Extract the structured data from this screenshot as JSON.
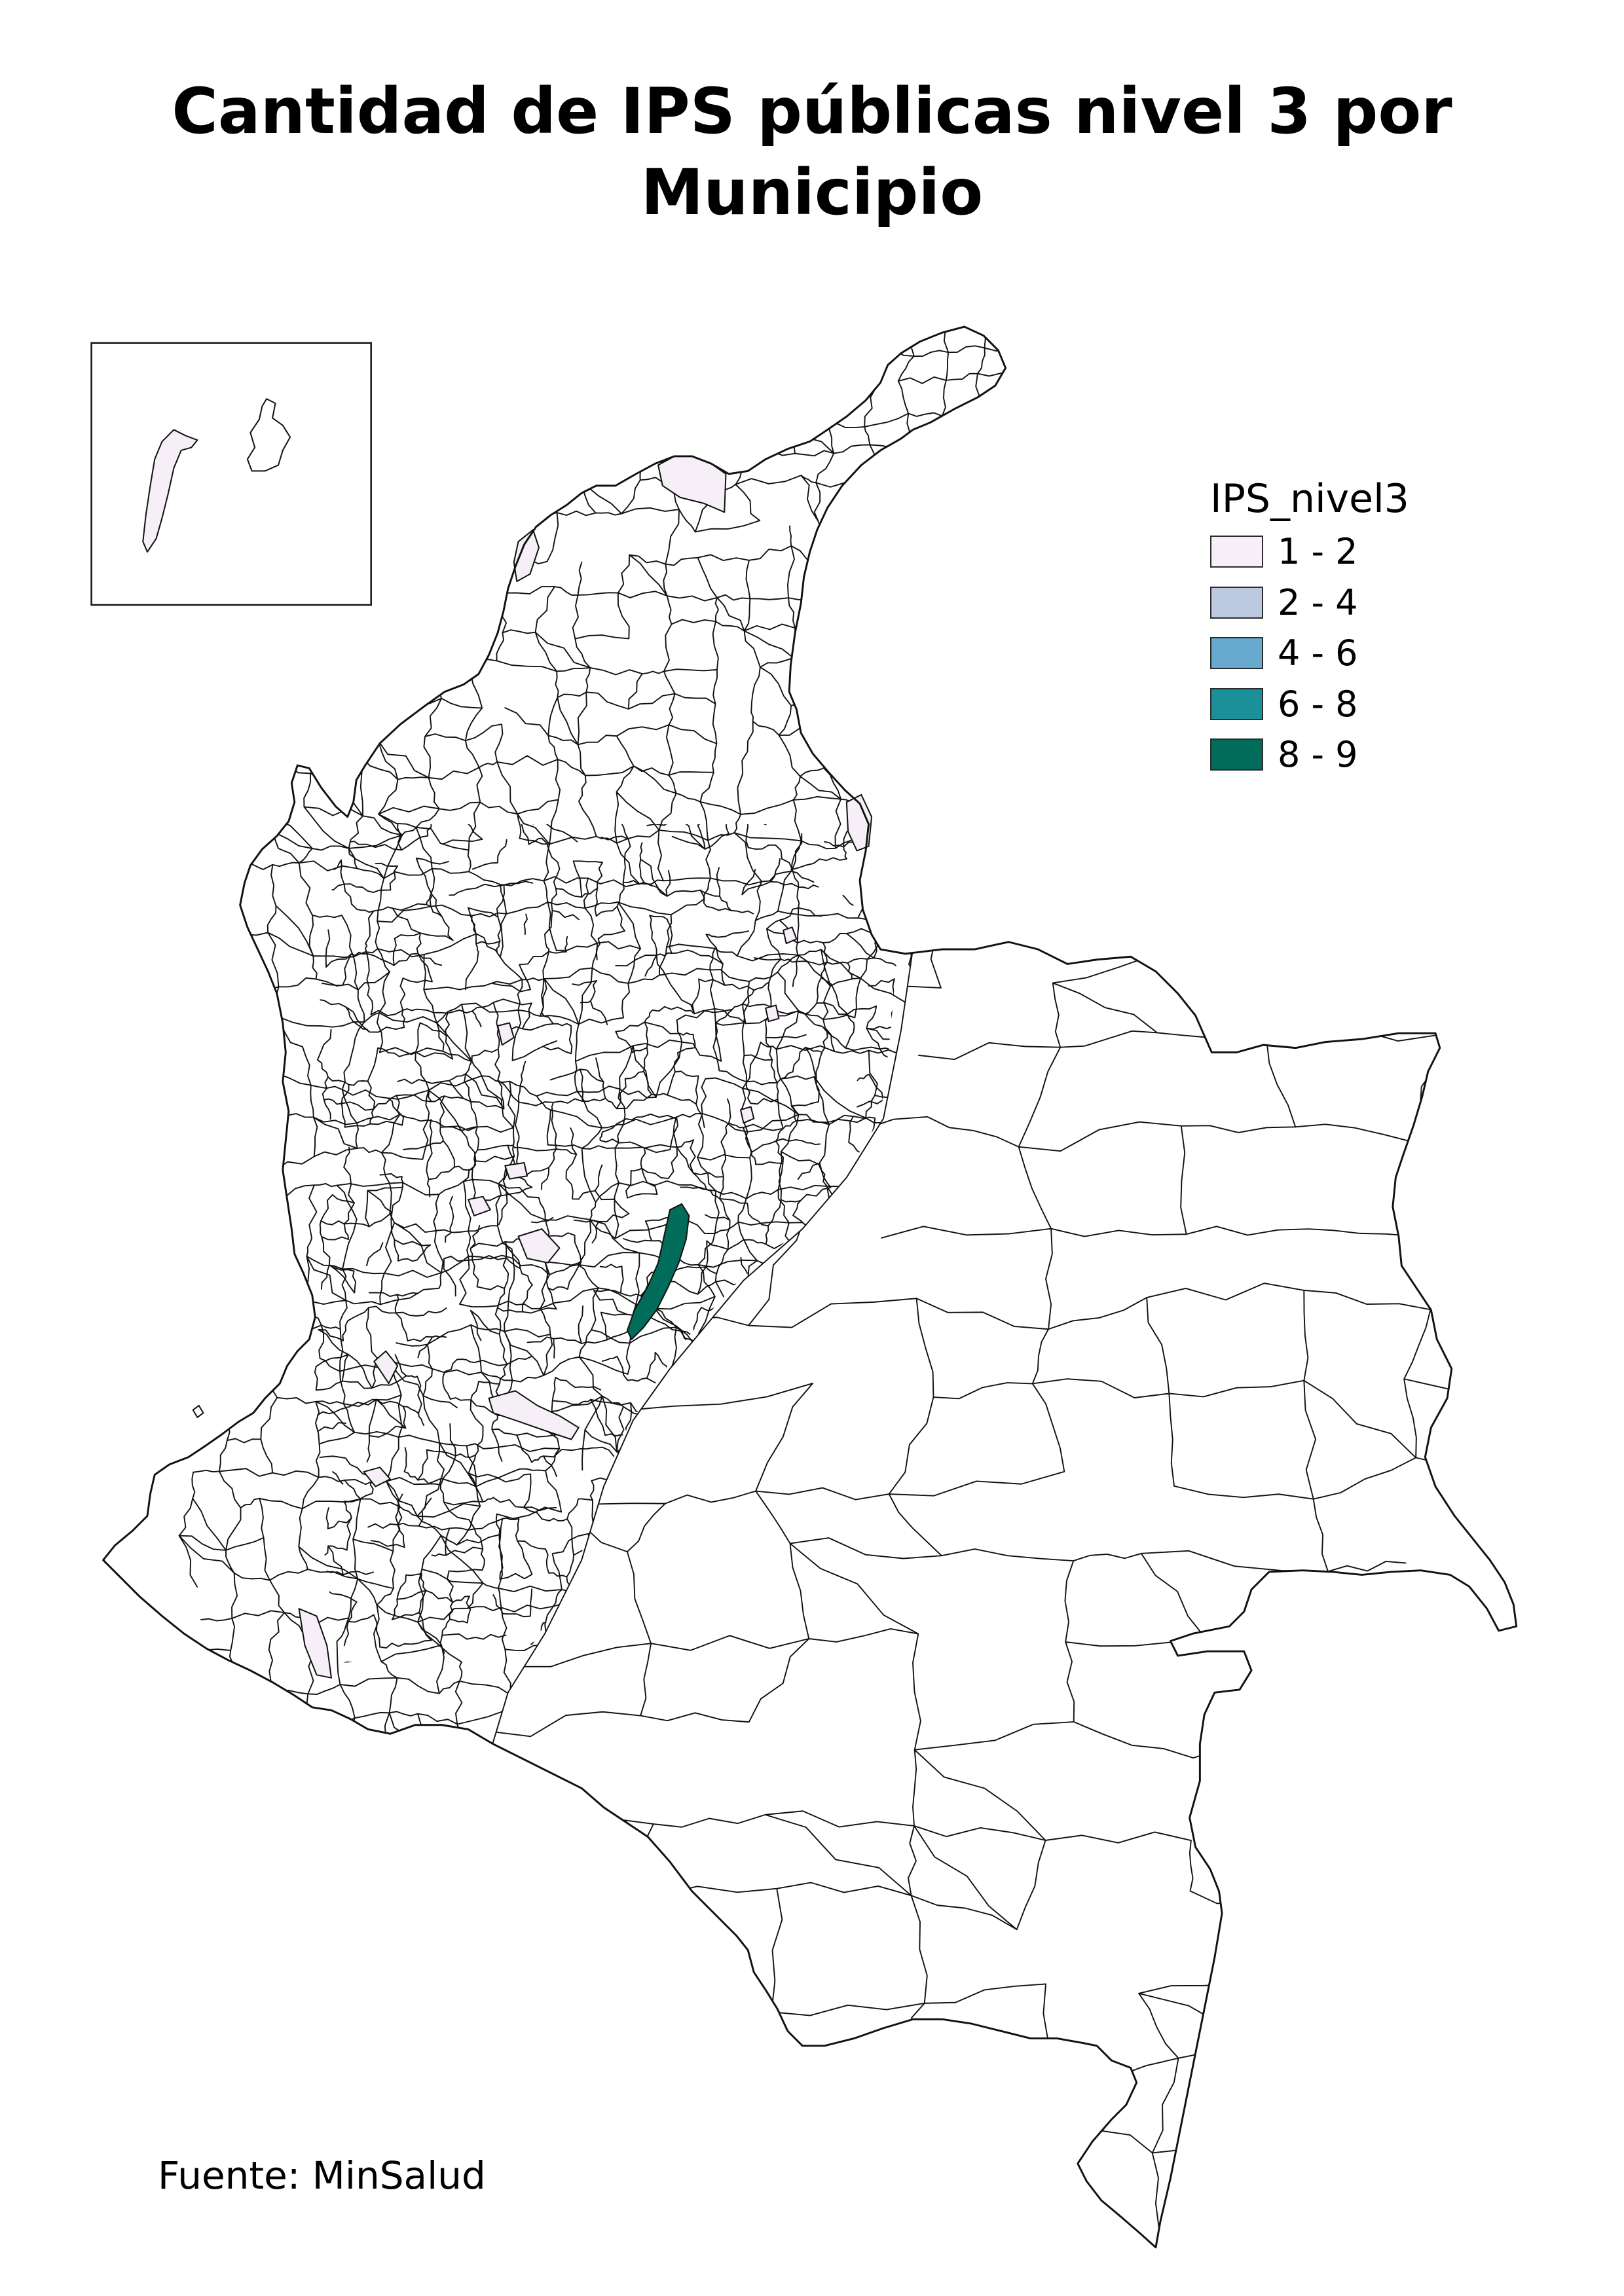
{
  "title": {
    "line1": "Cantidad de IPS públicas nivel 3 por",
    "line2": "Municipio"
  },
  "legend": {
    "title": "IPS_nivel3",
    "items": [
      {
        "label": "1 - 2",
        "color": "#f6eff7"
      },
      {
        "label": "2 - 4",
        "color": "#bdc9e1"
      },
      {
        "label": "4 - 6",
        "color": "#67a9cf"
      },
      {
        "label": "6 - 8",
        "color": "#1c9099"
      },
      {
        "label": "8 - 9",
        "color": "#016c59"
      }
    ]
  },
  "source": "Fuente: MinSalud",
  "map": {
    "land_color": "#ffffff",
    "boundary_color": "#111111",
    "inset_frame_color": "#111111"
  }
}
